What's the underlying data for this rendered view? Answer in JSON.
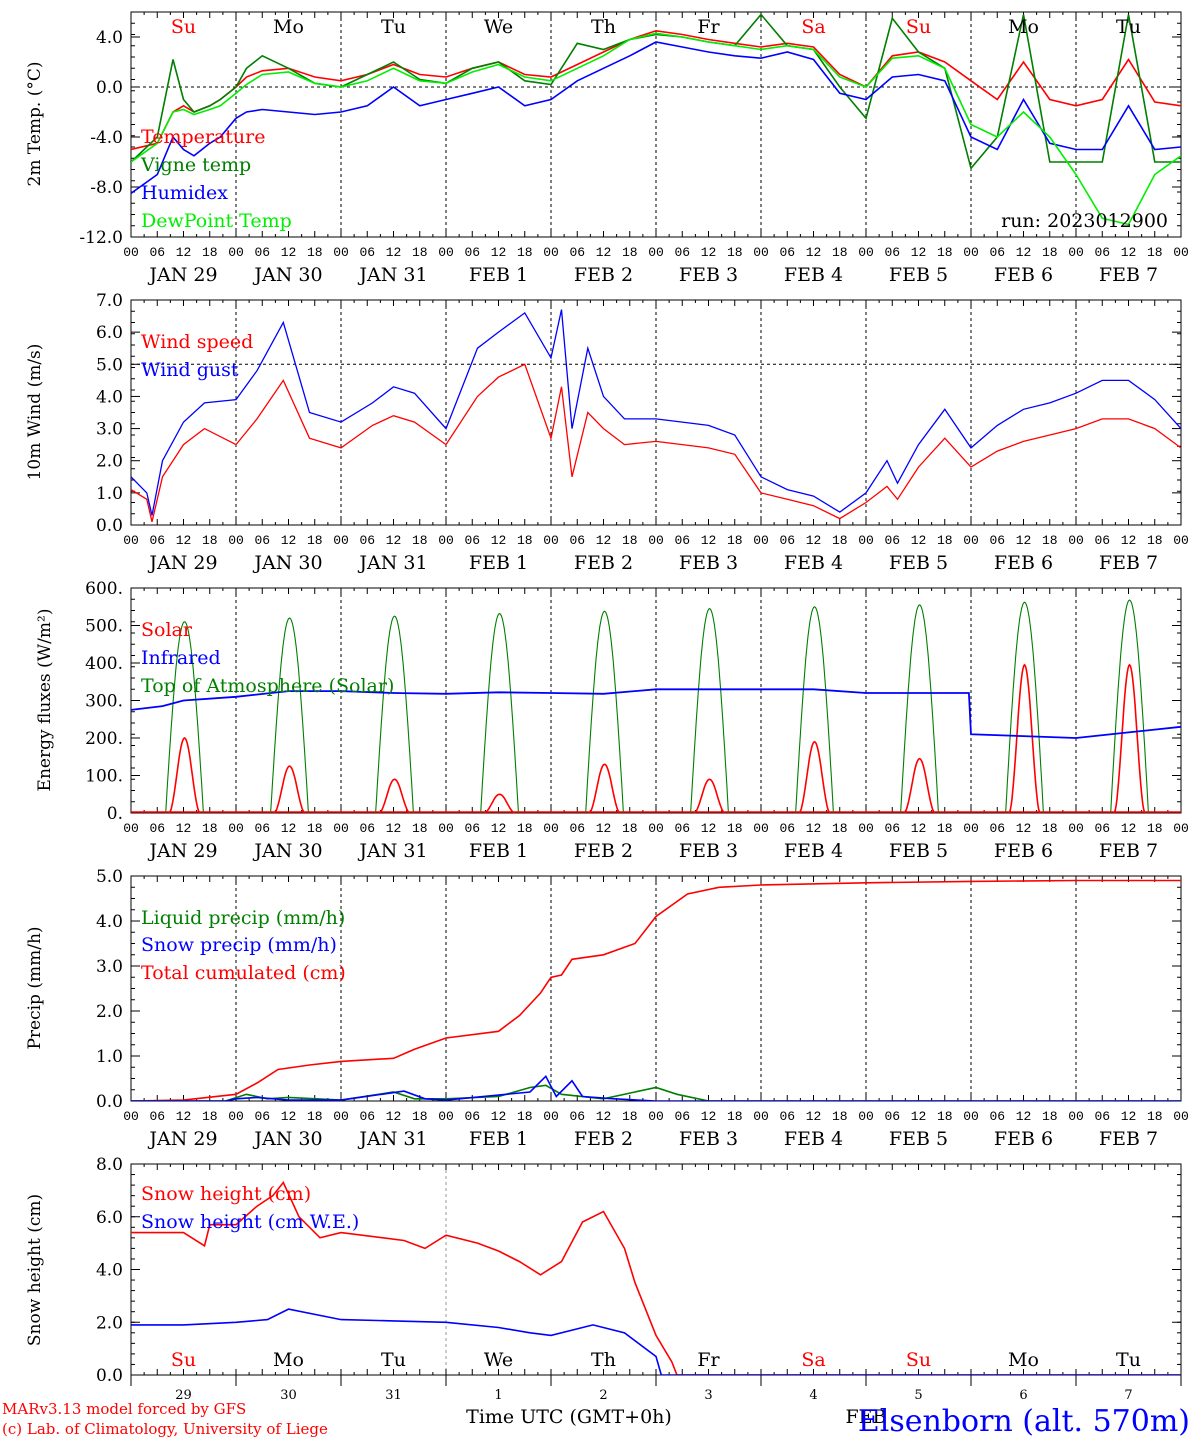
{
  "colors": {
    "red": "#ff0000",
    "green": "#007f00",
    "blue": "#0000ff",
    "lightgreen": "#00ee00",
    "black": "#000000",
    "purple": "#7f007f"
  },
  "day_names": [
    "Su",
    "Mo",
    "Tu",
    "We",
    "Th",
    "Fr",
    "Sa",
    "Su",
    "Mo",
    "Tu"
  ],
  "day_name_colors": [
    "red",
    "black",
    "black",
    "black",
    "black",
    "black",
    "red",
    "red",
    "black",
    "black"
  ],
  "hour_ticks": [
    "00",
    "06",
    "12",
    "18"
  ],
  "date_labels": [
    "JAN 29",
    "JAN 30",
    "JAN 31",
    "FEB  1",
    "FEB  2",
    "FEB  3",
    "FEB  4",
    "FEB  5",
    "FEB  6",
    "FEB  7"
  ],
  "bottom_day_numbers": [
    "29",
    "30",
    "31",
    "1",
    "2",
    "3",
    "4",
    "5",
    "6",
    "7"
  ],
  "bottom_axis_title": "Time UTC (GMT+0h)",
  "bottom_month": "FEB",
  "credit_line1": "MARv3.13 model forced by GFS",
  "credit_line2": "(c) Lab. of Climatology, University of Liege",
  "station": "Elsenborn (alt. 570m)",
  "run_label": "run: 2023012900",
  "chart_data": [
    {
      "type": "line",
      "ylabel": "2m Temp. (°C)",
      "ylim": [
        -12,
        6
      ],
      "yticks": [
        "4.0",
        "0.0",
        "-4.0",
        "-8.0",
        "-12.0"
      ],
      "ytick_values": [
        4,
        0,
        -4,
        -8,
        -12
      ],
      "zero_line": true,
      "legend": [
        "Temperature",
        "Vigne temp",
        "Humidex",
        "DewPoint Temp"
      ],
      "x_unit": "days since JAN 29 00 UTC",
      "series": [
        {
          "name": "Temperature",
          "color": "red",
          "x": [
            0,
            0.25,
            0.4,
            0.5,
            0.6,
            0.75,
            0.85,
            1.0,
            1.1,
            1.25,
            1.5,
            1.75,
            2.0,
            2.25,
            2.5,
            2.75,
            3.0,
            3.25,
            3.5,
            3.75,
            4.0,
            4.25,
            4.5,
            4.75,
            5.0,
            5.25,
            5.5,
            5.75,
            6.0,
            6.25,
            6.5,
            6.75,
            7.0,
            7.25,
            7.5,
            7.75,
            8.0,
            8.25,
            8.5,
            8.75,
            9.0,
            9.25,
            9.5,
            9.75,
            10.0
          ],
          "values": [
            -5.0,
            -4.5,
            -2.0,
            -1.5,
            -2.0,
            -1.5,
            -1.0,
            0.0,
            0.8,
            1.3,
            1.5,
            0.8,
            0.5,
            1.0,
            1.8,
            1.0,
            0.8,
            1.5,
            2.0,
            1.0,
            0.8,
            1.8,
            2.8,
            3.8,
            4.5,
            4.2,
            3.8,
            3.5,
            3.2,
            3.5,
            3.2,
            1.0,
            0.0,
            2.5,
            2.8,
            2.0,
            0.5,
            -1.0,
            2.0,
            -1.0,
            -1.5,
            -1.0,
            2.2,
            -1.2,
            -1.5
          ]
        },
        {
          "name": "Vigne temp",
          "color": "green",
          "x": [
            0,
            0.25,
            0.4,
            0.5,
            0.6,
            0.75,
            0.85,
            1.0,
            1.1,
            1.25,
            1.5,
            1.75,
            2.0,
            2.25,
            2.5,
            2.75,
            3.0,
            3.25,
            3.5,
            3.75,
            4.0,
            4.25,
            4.5,
            4.75,
            5.0,
            5.25,
            5.5,
            5.75,
            6.0,
            6.25,
            6.5,
            6.75,
            7.0,
            7.25,
            7.5,
            7.75,
            8.0,
            8.25,
            8.5,
            8.75,
            9.0,
            9.25,
            9.5,
            9.75,
            10.0
          ],
          "values": [
            -6.0,
            -4.0,
            2.2,
            -1.0,
            -2.0,
            -1.5,
            -1.0,
            0.0,
            1.5,
            2.5,
            1.5,
            0.3,
            0.0,
            1.0,
            2.0,
            0.6,
            0.3,
            1.5,
            2.0,
            0.5,
            0.2,
            3.5,
            3.0,
            3.8,
            4.2,
            4.0,
            3.6,
            3.3,
            5.8,
            3.3,
            3.0,
            0.0,
            -2.5,
            5.5,
            2.8,
            1.5,
            -6.5,
            -4.0,
            5.8,
            -6.0,
            -6.0,
            -6.0,
            5.8,
            -6.0,
            -6.0
          ]
        },
        {
          "name": "Humidex",
          "color": "blue",
          "x": [
            0,
            0.25,
            0.4,
            0.5,
            0.6,
            0.75,
            0.85,
            1.0,
            1.1,
            1.25,
            1.5,
            1.75,
            2.0,
            2.25,
            2.5,
            2.75,
            3.0,
            3.25,
            3.5,
            3.75,
            4.0,
            4.25,
            4.5,
            4.75,
            5.0,
            5.25,
            5.5,
            5.75,
            6.0,
            6.25,
            6.5,
            6.75,
            7.0,
            7.25,
            7.5,
            7.75,
            8.0,
            8.25,
            8.5,
            8.75,
            9.0,
            9.25,
            9.5,
            9.75,
            10.0
          ],
          "values": [
            -8.5,
            -7.0,
            -4.0,
            -5.0,
            -5.5,
            -4.5,
            -4.0,
            -2.5,
            -2.0,
            -1.8,
            -2.0,
            -2.2,
            -2.0,
            -1.5,
            0.0,
            -1.5,
            -1.0,
            -0.5,
            0.0,
            -1.5,
            -1.0,
            0.5,
            1.5,
            2.5,
            3.6,
            3.2,
            2.8,
            2.5,
            2.3,
            2.8,
            2.2,
            -0.5,
            -1.0,
            0.8,
            1.0,
            0.5,
            -4.0,
            -5.0,
            -1.0,
            -4.5,
            -5.0,
            -5.0,
            -1.5,
            -5.0,
            -4.8
          ]
        },
        {
          "name": "DewPoint Temp",
          "color": "lightgreen",
          "x": [
            0,
            0.25,
            0.4,
            0.5,
            0.6,
            0.75,
            0.85,
            1.0,
            1.1,
            1.25,
            1.5,
            1.75,
            2.0,
            2.25,
            2.5,
            2.75,
            3.0,
            3.25,
            3.5,
            3.75,
            4.0,
            4.25,
            4.5,
            4.75,
            5.0,
            5.25,
            5.5,
            5.75,
            6.0,
            6.25,
            6.5,
            6.75,
            7.0,
            7.25,
            7.5,
            7.75,
            8.0,
            8.25,
            8.5,
            8.75,
            9.0,
            9.25,
            9.5,
            9.75,
            10.0
          ],
          "values": [
            -6.0,
            -4.5,
            -2.0,
            -1.8,
            -2.2,
            -1.8,
            -1.5,
            -0.5,
            0.2,
            1.0,
            1.2,
            0.3,
            0.0,
            0.5,
            1.5,
            0.5,
            0.3,
            1.2,
            1.8,
            0.8,
            0.5,
            1.5,
            2.5,
            3.8,
            4.3,
            4.0,
            3.6,
            3.3,
            3.0,
            3.3,
            3.0,
            0.8,
            0.0,
            2.3,
            2.5,
            1.5,
            -3.0,
            -4.0,
            -2.0,
            -4.0,
            -7.0,
            -10.5,
            -11.0,
            -7.0,
            -5.5
          ]
        }
      ]
    },
    {
      "type": "line",
      "ylabel": "10m Wind (m/s)",
      "ylim": [
        0,
        7
      ],
      "yticks": [
        "7.0",
        "6.0",
        "5.0",
        "4.0",
        "3.0",
        "2.0",
        "1.0",
        "0.0"
      ],
      "ytick_values": [
        7,
        6,
        5,
        4,
        3,
        2,
        1,
        0
      ],
      "ref_line": 5,
      "legend": [
        "Wind speed",
        "Wind gust"
      ],
      "x_unit": "days since JAN 29 00 UTC",
      "series": [
        {
          "name": "Wind speed",
          "color": "red",
          "x": [
            0,
            0.15,
            0.2,
            0.3,
            0.5,
            0.7,
            1.0,
            1.2,
            1.45,
            1.7,
            2.0,
            2.3,
            2.5,
            2.7,
            3.0,
            3.3,
            3.5,
            3.75,
            4.0,
            4.1,
            4.2,
            4.35,
            4.5,
            4.7,
            5.0,
            5.25,
            5.5,
            5.75,
            6.0,
            6.25,
            6.5,
            6.75,
            7.0,
            7.2,
            7.3,
            7.5,
            7.75,
            8.0,
            8.25,
            8.5,
            8.75,
            9.0,
            9.25,
            9.5,
            9.75,
            10.0
          ],
          "values": [
            1.1,
            0.8,
            0.1,
            1.5,
            2.5,
            3.0,
            2.5,
            3.3,
            4.5,
            2.7,
            2.4,
            3.1,
            3.4,
            3.2,
            2.5,
            4.0,
            4.6,
            5.0,
            2.7,
            4.3,
            1.5,
            3.5,
            3.0,
            2.5,
            2.6,
            2.5,
            2.4,
            2.2,
            1.0,
            0.8,
            0.6,
            0.2,
            0.7,
            1.2,
            0.8,
            1.8,
            2.7,
            1.8,
            2.3,
            2.6,
            2.8,
            3.0,
            3.3,
            3.3,
            3.0,
            2.4
          ]
        },
        {
          "name": "Wind gust",
          "color": "blue",
          "x": [
            0,
            0.15,
            0.2,
            0.3,
            0.5,
            0.7,
            1.0,
            1.2,
            1.45,
            1.7,
            2.0,
            2.3,
            2.5,
            2.7,
            3.0,
            3.3,
            3.5,
            3.75,
            4.0,
            4.1,
            4.2,
            4.35,
            4.5,
            4.7,
            5.0,
            5.25,
            5.5,
            5.75,
            6.0,
            6.25,
            6.5,
            6.75,
            7.0,
            7.2,
            7.3,
            7.5,
            7.75,
            8.0,
            8.25,
            8.5,
            8.75,
            9.0,
            9.25,
            9.5,
            9.75,
            10.0
          ],
          "values": [
            1.5,
            1.0,
            0.3,
            2.0,
            3.2,
            3.8,
            3.9,
            4.8,
            6.3,
            3.5,
            3.2,
            3.8,
            4.3,
            4.1,
            3.0,
            5.5,
            6.0,
            6.6,
            5.2,
            6.7,
            3.0,
            5.5,
            4.0,
            3.3,
            3.3,
            3.2,
            3.1,
            2.8,
            1.5,
            1.1,
            0.9,
            0.4,
            1.0,
            2.0,
            1.3,
            2.5,
            3.6,
            2.4,
            3.1,
            3.6,
            3.8,
            4.1,
            4.5,
            4.5,
            3.9,
            3.0
          ]
        }
      ]
    },
    {
      "type": "line",
      "ylabel": "Energy fluxes (W/m²)",
      "ylim": [
        0,
        600
      ],
      "yticks": [
        "600.",
        "500.",
        "400.",
        "300.",
        "200.",
        "100.",
        "0."
      ],
      "ytick_values": [
        600,
        500,
        400,
        300,
        200,
        100,
        0
      ],
      "legend": [
        "Solar",
        "Infrared",
        "Top of Atmosphere (Solar)"
      ],
      "daily_peaks": {
        "solar": [
          200,
          125,
          90,
          50,
          130,
          90,
          190,
          145,
          395,
          395
        ],
        "toa": [
          510,
          520,
          525,
          532,
          538,
          545,
          550,
          555,
          562,
          568
        ]
      },
      "infrared": {
        "x": [
          0,
          0.3,
          0.5,
          1.0,
          1.5,
          2.0,
          2.5,
          3.0,
          3.5,
          4.0,
          4.5,
          5.0,
          5.5,
          6.0,
          6.5,
          7.0,
          7.5,
          7.98,
          8.0,
          8.5,
          9.0,
          9.5,
          10.0
        ],
        "values": [
          275,
          285,
          300,
          310,
          325,
          325,
          320,
          318,
          322,
          320,
          318,
          330,
          330,
          330,
          330,
          320,
          320,
          320,
          210,
          205,
          200,
          215,
          230
        ]
      }
    },
    {
      "type": "line",
      "ylabel": "Precip (mm/h)",
      "ylim": [
        0,
        5
      ],
      "yticks": [
        "5.0",
        "4.0",
        "3.0",
        "2.0",
        "1.0",
        "0.0"
      ],
      "ytick_values": [
        5,
        4,
        3,
        2,
        1,
        0
      ],
      "legend": [
        "Liquid precip (mm/h)",
        "Snow precip (mm/h)",
        "Total cumulated (cm)"
      ],
      "series": [
        {
          "name": "Total cumulated (cm)",
          "color": "red",
          "x": [
            0,
            0.5,
            1.0,
            1.2,
            1.4,
            1.7,
            2.0,
            2.5,
            2.7,
            3.0,
            3.5,
            3.7,
            3.9,
            4.0,
            4.1,
            4.2,
            4.5,
            4.8,
            5.0,
            5.3,
            5.6,
            6.0,
            7.0,
            8.0,
            9.0,
            10.0
          ],
          "values": [
            0.0,
            0.02,
            0.15,
            0.4,
            0.7,
            0.8,
            0.88,
            0.95,
            1.15,
            1.4,
            1.55,
            1.9,
            2.4,
            2.75,
            2.8,
            3.15,
            3.25,
            3.5,
            4.1,
            4.6,
            4.75,
            4.8,
            4.85,
            4.88,
            4.9,
            4.9
          ]
        },
        {
          "name": "Liquid precip (mm/h)",
          "color": "green",
          "x": [
            0,
            0.9,
            1.1,
            1.3,
            1.5,
            2.0,
            2.5,
            2.7,
            3.0,
            3.5,
            3.8,
            3.95,
            4.1,
            4.5,
            4.8,
            5.0,
            5.2,
            5.5,
            10.0
          ],
          "values": [
            0,
            0,
            0.15,
            0.05,
            0.08,
            0.02,
            0.2,
            0.05,
            0.05,
            0.1,
            0.3,
            0.35,
            0.15,
            0.05,
            0.2,
            0.3,
            0.15,
            0.0,
            0.0
          ]
        },
        {
          "name": "Snow precip (mm/h)",
          "color": "blue",
          "x": [
            0,
            0.9,
            1.0,
            1.2,
            1.5,
            2.0,
            2.6,
            2.8,
            3.0,
            3.8,
            3.95,
            4.05,
            4.2,
            4.3,
            4.6,
            5.0,
            10.0
          ],
          "values": [
            0,
            0,
            0.05,
            0.08,
            0.02,
            0.02,
            0.22,
            0.05,
            0.02,
            0.2,
            0.55,
            0.1,
            0.45,
            0.1,
            0.05,
            0.0,
            0.0
          ]
        }
      ]
    },
    {
      "type": "line",
      "ylabel": "Snow height (cm)",
      "ylim": [
        0,
        8
      ],
      "yticks": [
        "8.0",
        "6.0",
        "4.0",
        "2.0",
        "0.0"
      ],
      "ytick_values": [
        8,
        6,
        4,
        2,
        0
      ],
      "legend": [
        "Snow height (cm)",
        "Snow height (cm W.E.)"
      ],
      "series": [
        {
          "name": "Snow height (cm)",
          "color": "red",
          "x": [
            0,
            0.3,
            0.5,
            0.7,
            0.75,
            1.0,
            1.2,
            1.35,
            1.45,
            1.6,
            1.8,
            2.0,
            2.4,
            2.6,
            2.8,
            3.0,
            3.3,
            3.5,
            3.7,
            3.9,
            4.1,
            4.3,
            4.5,
            4.7,
            4.8,
            5.0,
            5.15,
            5.2,
            10.0
          ],
          "values": [
            5.4,
            5.4,
            5.4,
            4.9,
            5.7,
            5.7,
            6.4,
            6.8,
            7.3,
            6.0,
            5.2,
            5.4,
            5.2,
            5.1,
            4.8,
            5.3,
            5.0,
            4.7,
            4.3,
            3.8,
            4.3,
            5.8,
            6.2,
            4.8,
            3.5,
            1.5,
            0.5,
            0.0,
            0.0
          ]
        },
        {
          "name": "Snow height (cm W.E.)",
          "color": "blue",
          "x": [
            0,
            0.5,
            1.0,
            1.3,
            1.5,
            2.0,
            2.5,
            3.0,
            3.5,
            3.8,
            4.0,
            4.4,
            4.7,
            5.0,
            5.05,
            10.0
          ],
          "values": [
            1.9,
            1.9,
            2.0,
            2.1,
            2.5,
            2.1,
            2.05,
            2.0,
            1.8,
            1.6,
            1.5,
            1.9,
            1.6,
            0.7,
            0.0,
            0.0
          ]
        }
      ]
    }
  ]
}
